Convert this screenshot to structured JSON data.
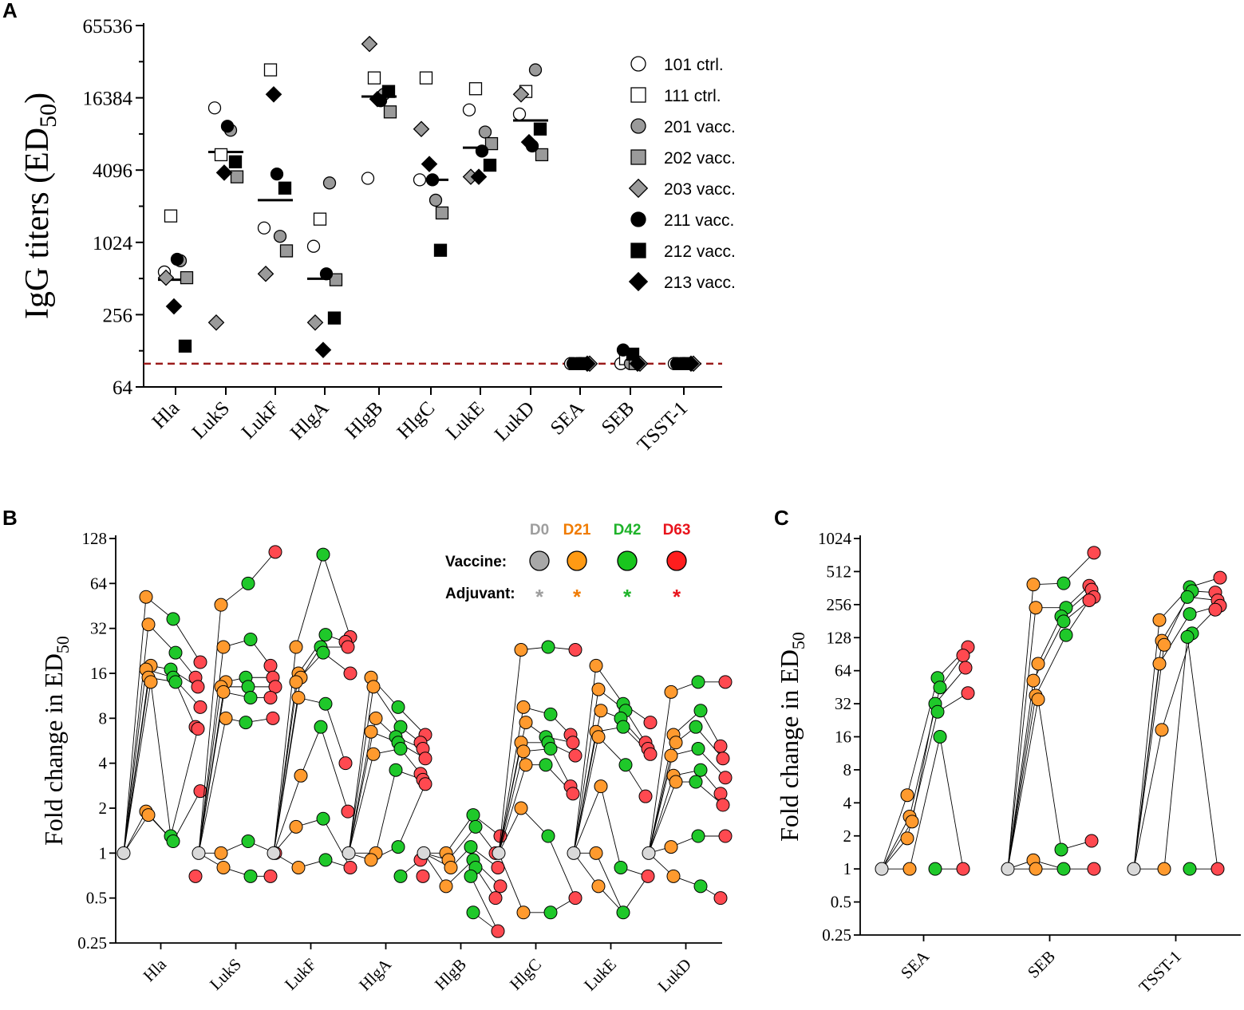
{
  "panels": {
    "A": "A",
    "B": "B",
    "C": "C"
  },
  "chart_data": [
    {
      "id": "A",
      "type": "scatter",
      "ylabel_main": "IgG titers (ED",
      "ylabel_sub": "50",
      "ylabel_close": ")",
      "yscale": "log2",
      "ylim": [
        64,
        65536
      ],
      "yticks": [
        64,
        256,
        1024,
        4096,
        16384,
        65536
      ],
      "categories": [
        "Hla",
        "LukS",
        "LukF",
        "HlgA",
        "HlgB",
        "HlgC",
        "LukE",
        "LukD",
        "SEA",
        "SEB",
        "TSST-1"
      ],
      "threshold": 100,
      "threshold_color": "#9b1b1b",
      "series": [
        {
          "name": "101 ctrl.",
          "marker": "circle",
          "fill": "#ffffff",
          "values": [
            580,
            13500,
            1350,
            950,
            3500,
            3400,
            13000,
            12000,
            100,
            100,
            100
          ]
        },
        {
          "name": "111 ctrl.",
          "marker": "square",
          "fill": "#ffffff",
          "values": [
            1700,
            5500,
            28000,
            1600,
            24000,
            24000,
            19500,
            18500,
            100,
            110,
            100
          ]
        },
        {
          "name": "201 vacc.",
          "marker": "circle",
          "fill": "#9a9a9a",
          "values": [
            720,
            8800,
            1150,
            3200,
            17500,
            2300,
            8500,
            28000,
            100,
            100,
            100
          ]
        },
        {
          "name": "202 vacc.",
          "marker": "square",
          "fill": "#9a9a9a",
          "values": [
            520,
            3600,
            870,
            500,
            12500,
            1800,
            6800,
            5500,
            100,
            100,
            100
          ]
        },
        {
          "name": "203 vacc.",
          "marker": "diamond",
          "fill": "#9a9a9a",
          "values": [
            520,
            220,
            560,
            220,
            46000,
            9000,
            3600,
            17500,
            100,
            100,
            100
          ]
        },
        {
          "name": "211 vacc.",
          "marker": "circle",
          "fill": "#000000",
          "values": [
            740,
            9500,
            3800,
            560,
            15500,
            3400,
            5900,
            6500,
            100,
            130,
            100
          ]
        },
        {
          "name": "212 vacc.",
          "marker": "square",
          "fill": "#000000",
          "values": [
            140,
            4800,
            2900,
            240,
            18500,
            880,
            4500,
            9000,
            100,
            120,
            100
          ]
        },
        {
          "name": "213 vacc.",
          "marker": "diamond",
          "fill": "#000000",
          "values": [
            300,
            3900,
            17500,
            130,
            16000,
            4600,
            3600,
            7000,
            100,
            100,
            100
          ]
        }
      ],
      "group_means": [
        500,
        5800,
        2300,
        510,
        16800,
        3400,
        6300,
        10600,
        null,
        null,
        null
      ]
    },
    {
      "id": "B",
      "type": "line",
      "ylabel_main": "Fold change in ED",
      "ylabel_sub": "50",
      "yscale": "log2",
      "ylim": [
        0.25,
        128
      ],
      "yticks": [
        0.25,
        0.5,
        1,
        2,
        4,
        8,
        16,
        32,
        64,
        128
      ],
      "ytick_labels": [
        "0.25",
        "0.5",
        "1",
        "2",
        "4",
        "8",
        "16",
        "32",
        "64",
        "128"
      ],
      "timepoints": [
        "D0",
        "D21",
        "D42",
        "D63"
      ],
      "categories": [
        "Hla",
        "LukS",
        "LukF",
        "HlgA",
        "HlgB",
        "HlgC",
        "LukE",
        "LukD"
      ],
      "groups": [
        {
          "name": "Hla",
          "D21": [
            52,
            34,
            18,
            17,
            15,
            14,
            1.9,
            1.8
          ],
          "D42": [
            37,
            22,
            17,
            15,
            14,
            1.3,
            1.2
          ],
          "D63": [
            19,
            15,
            13,
            9.5,
            7,
            6.8,
            2.6,
            0.7
          ]
        },
        {
          "name": "LukS",
          "D21": [
            46,
            24,
            14,
            13,
            12,
            8,
            1,
            0.8
          ],
          "D42": [
            64,
            27,
            15,
            13,
            11,
            7.5,
            1.2,
            0.7
          ],
          "D63": [
            104,
            18,
            15,
            13,
            11,
            8,
            1,
            0.7
          ]
        },
        {
          "name": "LukF",
          "D21": [
            24,
            16,
            15,
            14,
            11,
            3.3,
            1.5,
            0.8
          ],
          "D42": [
            100,
            29,
            24,
            22,
            10,
            7,
            1.7,
            0.9
          ],
          "D63": [
            28,
            26,
            24,
            16,
            4,
            1.9,
            0.8
          ]
        },
        {
          "name": "HlgA",
          "D21": [
            15,
            13,
            8,
            6.5,
            4.6,
            1,
            0.9
          ],
          "D42": [
            9.5,
            7,
            6,
            5.5,
            5,
            3.6,
            1.1,
            0.7
          ],
          "D63": [
            6.2,
            5.5,
            5,
            4.3,
            3.4,
            3.1,
            2.9,
            0.9,
            0.7
          ]
        },
        {
          "name": "HlgB",
          "D21": [
            1,
            0.9,
            0.8,
            0.6
          ],
          "D42": [
            1.8,
            1.5,
            1.1,
            0.9,
            0.8,
            0.7,
            0.4
          ],
          "D63": [
            1.3,
            1,
            0.8,
            0.6,
            0.5,
            0.3
          ]
        },
        {
          "name": "HlgC",
          "D21": [
            23,
            9.5,
            7.5,
            5.5,
            4.8,
            3.9,
            2,
            0.4
          ],
          "D42": [
            24,
            8.5,
            6,
            5.5,
            5,
            3.9,
            1.3,
            0.4
          ],
          "D63": [
            23,
            6.2,
            5.5,
            4.5,
            2.8,
            2.5,
            0.5
          ]
        },
        {
          "name": "LukE",
          "D21": [
            18,
            12.5,
            9,
            6.5,
            6,
            2.8,
            1,
            0.6
          ],
          "D42": [
            10,
            9,
            8,
            7,
            3.9,
            0.8,
            0.4
          ],
          "D63": [
            7.5,
            5.5,
            5,
            4.6,
            2.4,
            0.7
          ]
        },
        {
          "name": "LukD",
          "D21": [
            12,
            6.2,
            5.5,
            4.5,
            3.3,
            3,
            1.1,
            0.7
          ],
          "D42": [
            14,
            9,
            7,
            5,
            3.6,
            3,
            1.3,
            0.6
          ],
          "D63": [
            14,
            5.2,
            4.3,
            3.2,
            2.5,
            2.1,
            1.3,
            0.5
          ]
        }
      ],
      "legend": {
        "headers": [
          "D0",
          "D21",
          "D42",
          "D63"
        ],
        "header_colors": [
          "#9e9e9e",
          "#f07b00",
          "#1fb32a",
          "#e8141c"
        ],
        "vaccine_label": "Vaccine:",
        "adjuvant_label": "Adjuvant:",
        "adjuvant_mark": "*",
        "marker_colors": [
          "#a8a8a8",
          "#ff9a14",
          "#19c61e",
          "#ff1e1e"
        ]
      }
    },
    {
      "id": "C",
      "type": "line",
      "ylabel_main": "Fold change in ED",
      "ylabel_sub": "50",
      "yscale": "log2",
      "ylim": [
        0.25,
        1024
      ],
      "yticks": [
        0.25,
        0.5,
        1,
        2,
        4,
        8,
        16,
        32,
        64,
        128,
        256,
        512,
        1024
      ],
      "ytick_labels": [
        "0.25",
        "0.5",
        "1",
        "2",
        "4",
        "8",
        "16",
        "32",
        "64",
        "128",
        "256",
        "512",
        "1024"
      ],
      "categories": [
        "SEA",
        "SEB",
        "TSST-1"
      ],
      "groups": [
        {
          "name": "SEA",
          "D21": [
            4.7,
            3,
            2.7,
            1.9,
            1
          ],
          "D42": [
            55,
            45,
            32,
            27,
            16,
            1
          ],
          "D63": [
            105,
            88,
            68,
            40,
            1
          ]
        },
        {
          "name": "SEB",
          "D21": [
            390,
            240,
            74,
            52,
            38,
            35,
            1.2,
            1
          ],
          "D42": [
            400,
            240,
            200,
            180,
            135,
            1.5,
            1
          ],
          "D63": [
            760,
            380,
            350,
            300,
            280,
            1.8,
            1
          ]
        },
        {
          "name": "TSST-1",
          "D21": [
            185,
            120,
            110,
            74,
            18.5,
            1
          ],
          "D42": [
            370,
            340,
            300,
            210,
            140,
            130,
            1
          ],
          "D63": [
            450,
            330,
            280,
            250,
            230,
            1
          ]
        }
      ]
    }
  ],
  "colors": {
    "d0": "#d9d9d9",
    "d21": "#ff9a2e",
    "d42": "#1fc82a",
    "d63": "#ff4950",
    "axis": "#000000"
  }
}
